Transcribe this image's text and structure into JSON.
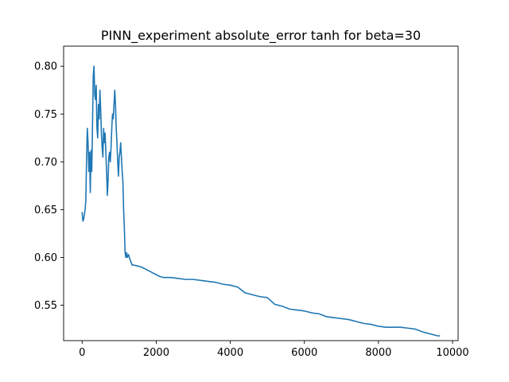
{
  "chart_data": {
    "type": "line",
    "title": "PINN_experiment absolute_error tanh for beta=30",
    "xlabel": "",
    "ylabel": "",
    "xlim": [
      -500,
      10150
    ],
    "ylim": [
      0.513,
      0.821
    ],
    "xticks": [
      0,
      2000,
      4000,
      6000,
      8000,
      10000
    ],
    "yticks": [
      0.55,
      0.6,
      0.65,
      0.7,
      0.75,
      0.8
    ],
    "xtick_labels": [
      "0",
      "2000",
      "4000",
      "6000",
      "8000",
      "10000"
    ],
    "ytick_labels": [
      "0.55",
      "0.60",
      "0.65",
      "0.70",
      "0.75",
      "0.80"
    ],
    "grid": false,
    "legend": false,
    "colors": {
      "series": "#1f77b4",
      "axes": "#000000",
      "background": "#ffffff"
    },
    "series": [
      {
        "x": [
          0,
          20,
          40,
          60,
          80,
          100,
          120,
          140,
          160,
          180,
          200,
          220,
          240,
          260,
          280,
          300,
          320,
          340,
          360,
          380,
          400,
          420,
          440,
          460,
          480,
          500,
          520,
          540,
          560,
          580,
          600,
          620,
          640,
          660,
          680,
          700,
          720,
          740,
          760,
          780,
          800,
          820,
          840,
          860,
          880,
          900,
          920,
          940,
          960,
          980,
          1000,
          1020,
          1040,
          1060,
          1080,
          1100,
          1120,
          1140,
          1160,
          1180,
          1200,
          1220,
          1250,
          1300,
          1350,
          1400,
          1500,
          1600,
          1700,
          1800,
          1900,
          2000,
          2100,
          2200,
          2300,
          2400,
          2600,
          2800,
          3000,
          3200,
          3400,
          3600,
          3800,
          4000,
          4200,
          4400,
          4600,
          4800,
          5000,
          5200,
          5400,
          5600,
          5800,
          6000,
          6200,
          6400,
          6600,
          6800,
          7000,
          7200,
          7400,
          7600,
          7800,
          8000,
          8200,
          8400,
          8600,
          8800,
          9000,
          9200,
          9400,
          9600,
          9650
        ],
        "y": [
          0.647,
          0.638,
          0.64,
          0.645,
          0.65,
          0.66,
          0.705,
          0.735,
          0.72,
          0.69,
          0.71,
          0.668,
          0.712,
          0.69,
          0.74,
          0.79,
          0.8,
          0.77,
          0.765,
          0.78,
          0.735,
          0.725,
          0.76,
          0.745,
          0.775,
          0.755,
          0.73,
          0.715,
          0.705,
          0.735,
          0.72,
          0.73,
          0.71,
          0.69,
          0.665,
          0.68,
          0.705,
          0.71,
          0.7,
          0.715,
          0.735,
          0.75,
          0.745,
          0.76,
          0.775,
          0.76,
          0.735,
          0.72,
          0.7,
          0.685,
          0.705,
          0.71,
          0.72,
          0.705,
          0.69,
          0.68,
          0.65,
          0.63,
          0.605,
          0.6,
          0.605,
          0.6,
          0.603,
          0.597,
          0.592,
          0.592,
          0.591,
          0.59,
          0.588,
          0.586,
          0.584,
          0.582,
          0.58,
          0.579,
          0.579,
          0.579,
          0.578,
          0.577,
          0.577,
          0.576,
          0.575,
          0.574,
          0.572,
          0.571,
          0.569,
          0.563,
          0.561,
          0.559,
          0.558,
          0.551,
          0.549,
          0.546,
          0.545,
          0.544,
          0.542,
          0.541,
          0.538,
          0.537,
          0.536,
          0.535,
          0.533,
          0.531,
          0.53,
          0.528,
          0.527,
          0.527,
          0.527,
          0.526,
          0.525,
          0.522,
          0.52,
          0.518,
          0.518
        ]
      }
    ]
  }
}
